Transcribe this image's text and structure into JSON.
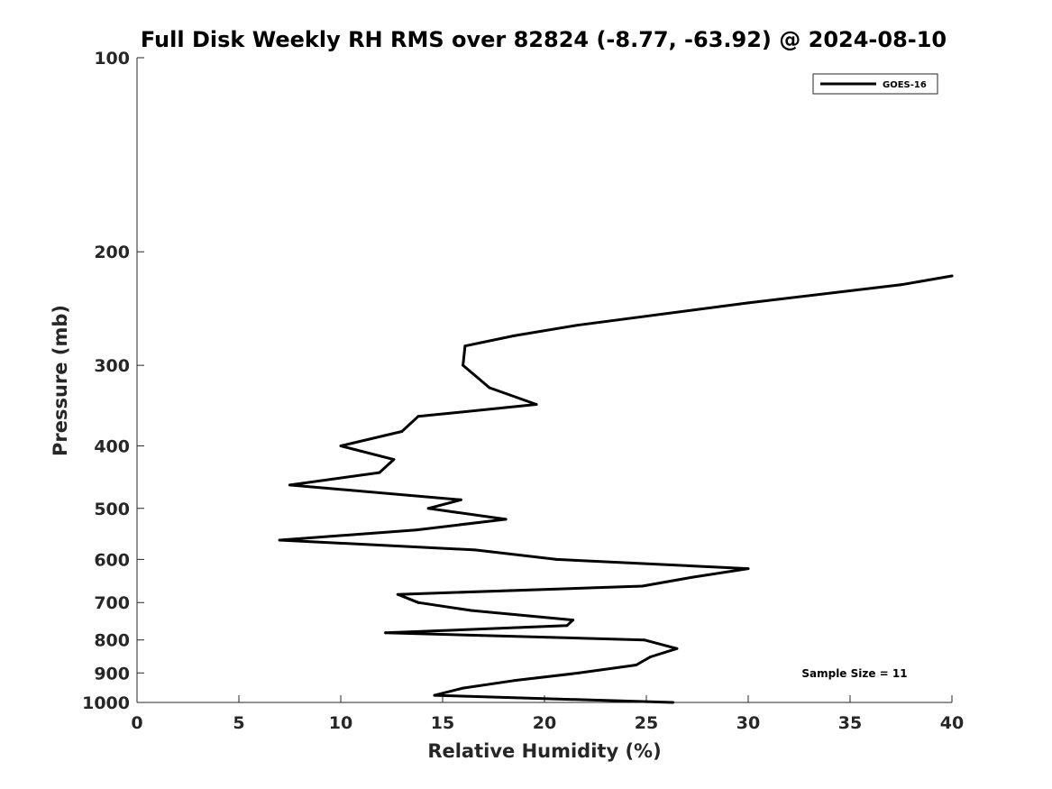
{
  "chart_data": {
    "type": "line",
    "title": "Full Disk Weekly RH RMS over 82824 (-8.77, -63.92) @ 2024-08-10",
    "xlabel": "Relative Humidity (%)",
    "ylabel": "Pressure (mb)",
    "xlim": [
      0,
      40
    ],
    "ylim": [
      100,
      1000
    ],
    "y_scale": "log",
    "y_reversed": true,
    "grid": false,
    "legend_position": "top-right",
    "x_ticks": [
      "0",
      "5",
      "10",
      "15",
      "20",
      "25",
      "30",
      "35",
      "40"
    ],
    "y_ticks": [
      "100",
      "200",
      "300",
      "400",
      "500",
      "600",
      "700",
      "800",
      "900",
      "1000"
    ],
    "annotation": "Sample Size = 11",
    "series": [
      {
        "name": "GOES-16",
        "color": "#000000",
        "points": [
          {
            "x": 26.3,
            "y": 1000
          },
          {
            "x": 14.6,
            "y": 975
          },
          {
            "x": 16.0,
            "y": 950
          },
          {
            "x": 18.5,
            "y": 925
          },
          {
            "x": 21.7,
            "y": 900
          },
          {
            "x": 24.5,
            "y": 875
          },
          {
            "x": 25.2,
            "y": 850
          },
          {
            "x": 26.5,
            "y": 825
          },
          {
            "x": 24.9,
            "y": 800
          },
          {
            "x": 12.2,
            "y": 780
          },
          {
            "x": 21.1,
            "y": 760
          },
          {
            "x": 21.4,
            "y": 745
          },
          {
            "x": 16.4,
            "y": 720
          },
          {
            "x": 13.8,
            "y": 700
          },
          {
            "x": 12.8,
            "y": 680
          },
          {
            "x": 24.8,
            "y": 660
          },
          {
            "x": 27.2,
            "y": 640
          },
          {
            "x": 30.0,
            "y": 620
          },
          {
            "x": 20.6,
            "y": 600
          },
          {
            "x": 16.6,
            "y": 580
          },
          {
            "x": 7.0,
            "y": 560
          },
          {
            "x": 13.7,
            "y": 540
          },
          {
            "x": 18.1,
            "y": 520
          },
          {
            "x": 14.3,
            "y": 500
          },
          {
            "x": 15.9,
            "y": 485
          },
          {
            "x": 7.5,
            "y": 460
          },
          {
            "x": 11.9,
            "y": 440
          },
          {
            "x": 12.6,
            "y": 420
          },
          {
            "x": 10.0,
            "y": 400
          },
          {
            "x": 13.0,
            "y": 380
          },
          {
            "x": 13.8,
            "y": 360
          },
          {
            "x": 19.6,
            "y": 345
          },
          {
            "x": 17.3,
            "y": 325
          },
          {
            "x": 16.0,
            "y": 300
          },
          {
            "x": 16.1,
            "y": 280
          },
          {
            "x": 18.5,
            "y": 270
          },
          {
            "x": 21.6,
            "y": 260
          },
          {
            "x": 30.0,
            "y": 240
          },
          {
            "x": 37.5,
            "y": 225
          },
          {
            "x": 40.0,
            "y": 218
          }
        ]
      }
    ]
  }
}
